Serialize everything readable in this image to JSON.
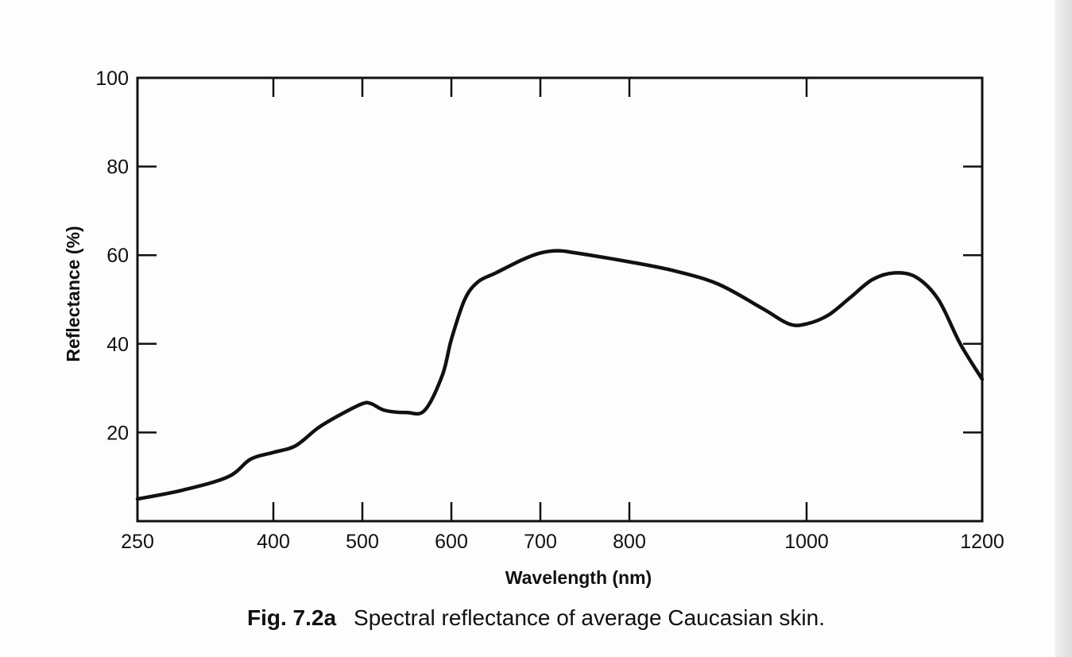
{
  "caption": {
    "figure_number": "Fig. 7.2a",
    "text": "Spectral reflectance of average Caucasian skin."
  },
  "colors": {
    "line": "#111111",
    "background": "#fdfdfd"
  },
  "chart_data": {
    "type": "line",
    "title": "",
    "xlabel": "Wavelength  (nm)",
    "ylabel": "Reflectance  (%)",
    "x_scale": "piecewise",
    "x_ticks": [
      250,
      400,
      500,
      600,
      700,
      800,
      1000,
      1200
    ],
    "y_ticks": [
      20,
      40,
      60,
      80,
      100
    ],
    "xlim": [
      250,
      1200
    ],
    "ylim": [
      0,
      100
    ],
    "grid": false,
    "series": [
      {
        "x": [
          250,
          300,
          350,
          375,
          400,
          425,
          450,
          475,
          500,
          510,
          525,
          550,
          570,
          590,
          600,
          615,
          630,
          650,
          680,
          700,
          720,
          740,
          800,
          850,
          900,
          950,
          980,
          1000,
          1025,
          1050,
          1075,
          1100,
          1125,
          1150,
          1175,
          1200
        ],
        "y": [
          5,
          7,
          10,
          14,
          15.5,
          17,
          21,
          24,
          26.5,
          26.5,
          25,
          24.5,
          25,
          33,
          41,
          50,
          54,
          56,
          59,
          60.5,
          61,
          60.5,
          58.5,
          56.5,
          53.5,
          48,
          44.5,
          44.5,
          46.5,
          50.5,
          54.5,
          56,
          55,
          50,
          40,
          32
        ]
      }
    ]
  }
}
